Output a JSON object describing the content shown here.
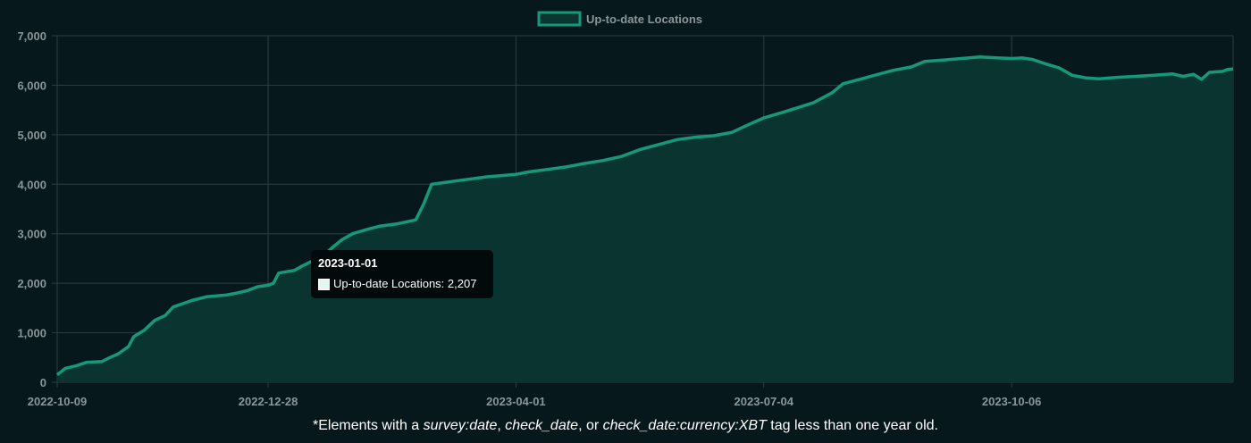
{
  "chart_data": {
    "type": "area",
    "legend": {
      "label": "Up-to-date Locations",
      "position": "top"
    },
    "series": [
      {
        "name": "Up-to-date Locations",
        "color": "#15997a",
        "fill": "#0a3430",
        "points": [
          [
            "2022-10-09",
            150
          ],
          [
            "2022-10-12",
            280
          ],
          [
            "2022-10-16",
            330
          ],
          [
            "2022-10-20",
            400
          ],
          [
            "2022-10-26",
            420
          ],
          [
            "2022-10-29",
            500
          ],
          [
            "2022-11-01",
            570
          ],
          [
            "2022-11-05",
            720
          ],
          [
            "2022-11-07",
            920
          ],
          [
            "2022-11-11",
            1050
          ],
          [
            "2022-11-15",
            1250
          ],
          [
            "2022-11-19",
            1350
          ],
          [
            "2022-11-22",
            1520
          ],
          [
            "2022-11-29",
            1650
          ],
          [
            "2022-12-05",
            1730
          ],
          [
            "2022-12-12",
            1760
          ],
          [
            "2022-12-16",
            1800
          ],
          [
            "2022-12-20",
            1850
          ],
          [
            "2022-12-24",
            1930
          ],
          [
            "2022-12-28",
            1960
          ],
          [
            "2022-12-30",
            2000
          ],
          [
            "2023-01-01",
            2207
          ],
          [
            "2023-01-07",
            2260
          ],
          [
            "2023-01-10",
            2350
          ],
          [
            "2023-01-15",
            2480
          ],
          [
            "2023-01-18",
            2560
          ],
          [
            "2023-01-22",
            2750
          ],
          [
            "2023-01-25",
            2880
          ],
          [
            "2023-01-29",
            3000
          ],
          [
            "2023-02-03",
            3080
          ],
          [
            "2023-02-08",
            3150
          ],
          [
            "2023-02-15",
            3200
          ],
          [
            "2023-02-22",
            3280
          ],
          [
            "2023-02-25",
            3600
          ],
          [
            "2023-02-28",
            4000
          ],
          [
            "2023-03-07",
            4050
          ],
          [
            "2023-03-14",
            4100
          ],
          [
            "2023-03-21",
            4150
          ],
          [
            "2023-04-01",
            4200
          ],
          [
            "2023-04-06",
            4250
          ],
          [
            "2023-04-13",
            4300
          ],
          [
            "2023-04-20",
            4350
          ],
          [
            "2023-04-27",
            4420
          ],
          [
            "2023-05-04",
            4480
          ],
          [
            "2023-05-11",
            4560
          ],
          [
            "2023-05-18",
            4700
          ],
          [
            "2023-05-25",
            4800
          ],
          [
            "2023-06-01",
            4900
          ],
          [
            "2023-06-08",
            4950
          ],
          [
            "2023-06-15",
            4980
          ],
          [
            "2023-06-22",
            5050
          ],
          [
            "2023-06-28",
            5200
          ],
          [
            "2023-07-04",
            5340
          ],
          [
            "2023-07-11",
            5450
          ],
          [
            "2023-07-17",
            5550
          ],
          [
            "2023-07-23",
            5650
          ],
          [
            "2023-07-30",
            5850
          ],
          [
            "2023-08-03",
            6030
          ],
          [
            "2023-08-08",
            6100
          ],
          [
            "2023-08-15",
            6200
          ],
          [
            "2023-08-22",
            6300
          ],
          [
            "2023-08-29",
            6370
          ],
          [
            "2023-09-03",
            6480
          ],
          [
            "2023-09-10",
            6510
          ],
          [
            "2023-09-17",
            6540
          ],
          [
            "2023-09-24",
            6570
          ],
          [
            "2023-10-01",
            6550
          ],
          [
            "2023-10-06",
            6540
          ],
          [
            "2023-10-10",
            6550
          ],
          [
            "2023-10-14",
            6520
          ],
          [
            "2023-10-19",
            6430
          ],
          [
            "2023-10-24",
            6350
          ],
          [
            "2023-10-29",
            6200
          ],
          [
            "2023-11-03",
            6150
          ],
          [
            "2023-11-08",
            6130
          ],
          [
            "2023-11-15",
            6160
          ],
          [
            "2023-11-22",
            6180
          ],
          [
            "2023-11-29",
            6200
          ],
          [
            "2023-12-06",
            6230
          ],
          [
            "2023-12-10",
            6180
          ],
          [
            "2023-12-14",
            6220
          ],
          [
            "2023-12-17",
            6120
          ],
          [
            "2023-12-20",
            6260
          ],
          [
            "2023-12-25",
            6280
          ],
          [
            "2023-12-27",
            6320
          ],
          [
            "2023-12-29",
            6330
          ]
        ]
      }
    ],
    "x_axis": {
      "type": "date",
      "range": [
        "2022-10-09",
        "2023-12-29"
      ],
      "ticks": [
        "2022-10-09",
        "2022-12-28",
        "2023-04-01",
        "2023-07-04",
        "2023-10-06"
      ]
    },
    "y_axis": {
      "range": [
        0,
        7000
      ],
      "ticks": [
        "0",
        "1,000",
        "2,000",
        "3,000",
        "4,000",
        "5,000",
        "6,000",
        "7,000"
      ]
    },
    "grid": true,
    "tooltip": {
      "title": "2023-01-01",
      "label": "Up-to-date Locations: 2,207"
    }
  },
  "footnote": {
    "prefix": "*Elements with a ",
    "tag1": "survey:date",
    "sep1": ", ",
    "tag2": "check_date",
    "sep2": ", or ",
    "tag3": "check_date:currency:XBT",
    "suffix": " tag less than one year old."
  }
}
